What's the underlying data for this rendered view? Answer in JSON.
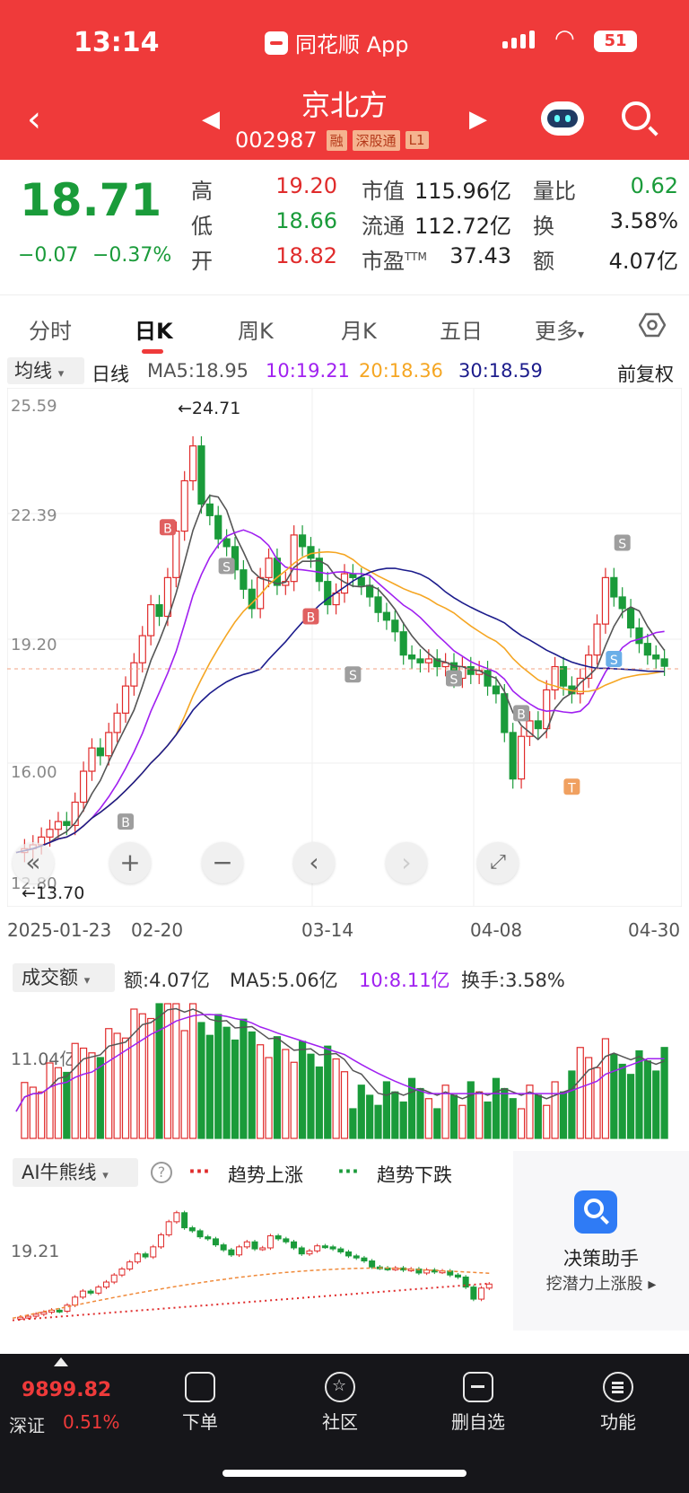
{
  "status_bar": {
    "time": "13:14",
    "app_label": "同花顺 App",
    "battery": "51"
  },
  "header": {
    "back_icon": "chevron-left-icon",
    "stock_name": "京北方",
    "stock_code": "002987",
    "tags": [
      "融",
      "深股通",
      "L1"
    ],
    "prev": "◀",
    "next": "▶"
  },
  "quote": {
    "price": "18.71",
    "change": "−0.07",
    "change_pct": "−0.37%",
    "high_label": "高",
    "high": "19.20",
    "low_label": "低",
    "low": "18.66",
    "open_label": "开",
    "open": "18.82",
    "mktcap_label": "市值",
    "mktcap": "115.96亿",
    "float_label": "流通",
    "float": "112.72亿",
    "pe_label": "市盈",
    "pe_sup": "TTM",
    "pe": "37.43",
    "vol_ratio_label": "量比",
    "vol_ratio": "0.62",
    "turnover_label": "换",
    "turnover": "3.58%",
    "amount_label": "额",
    "amount": "4.07亿"
  },
  "tabs": [
    "分时",
    "日K",
    "周K",
    "月K",
    "五日",
    "更多"
  ],
  "active_tab": 1,
  "ma_bar": {
    "select": "均线",
    "period": "日线",
    "ma5": "MA5:18.95",
    "ma10": "10:19.21",
    "ma20": "20:18.36",
    "ma30": "30:18.59",
    "adjust": "前复权"
  },
  "kline": {
    "y_labels": [
      "25.59",
      "22.39",
      "19.20",
      "16.00",
      "12.80"
    ],
    "high_mark": "←24.71",
    "low_mark": "←13.70",
    "dates": [
      "2025-01-23",
      "02-20",
      "03-14",
      "04-08",
      "04-30"
    ]
  },
  "volume": {
    "select": "成交额",
    "amount": "额:4.07亿",
    "ma5": "MA5:5.06亿",
    "ma10": "10:8.11亿",
    "turnover": "换手:3.58%",
    "y_label": "11.04亿"
  },
  "ai": {
    "select": "AI牛熊线",
    "up_label": "趋势上涨",
    "down_label": "趋势下跌",
    "y_label": "19.21",
    "decision_title": "决策助手",
    "decision_sub": "挖潜力上涨股 ▸"
  },
  "bottom": {
    "index_value": "9899.82",
    "index_name": "深证",
    "index_pct": "0.51%",
    "items": [
      "下单",
      "社区",
      "删自选",
      "功能"
    ]
  },
  "colors": {
    "header": "#ef3a3a",
    "up": "#e02b2b",
    "down": "#1a9b3a",
    "ma5": "#555555",
    "ma10": "#a020f0",
    "ma20": "#f5a623",
    "ma30": "#1c1c8c"
  }
}
